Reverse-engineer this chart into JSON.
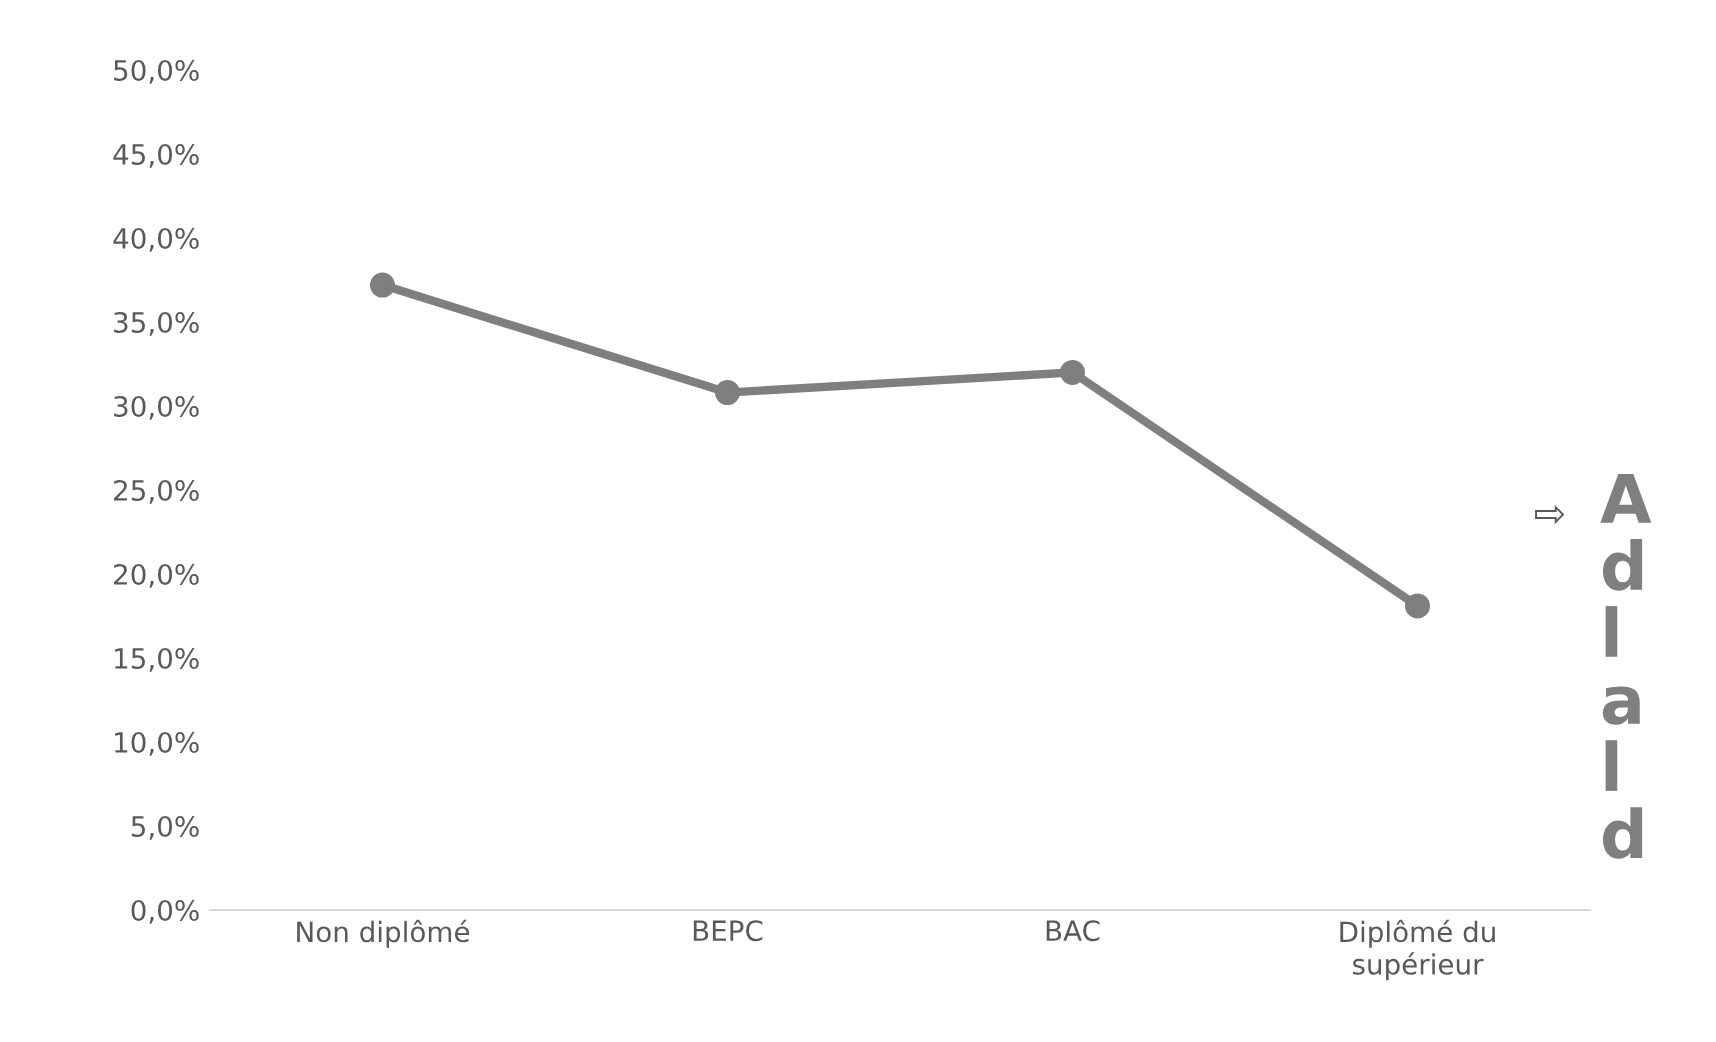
{
  "chart_data": {
    "type": "line",
    "categories": [
      "Non diplômé",
      "BEPC",
      "BAC",
      "Diplômé du\nsupérieur"
    ],
    "series": [
      {
        "color": "#7f7f7f",
        "values": [
          37.2,
          30.8,
          32.0,
          18.1
        ]
      }
    ],
    "ylim": [
      0,
      50
    ],
    "yticks": [
      {
        "value": 0,
        "label": "0,0%"
      },
      {
        "value": 5,
        "label": "5,0%"
      },
      {
        "value": 10,
        "label": "10,0%"
      },
      {
        "value": 15,
        "label": "15,0%"
      },
      {
        "value": 20,
        "label": "20,0%"
      },
      {
        "value": 25,
        "label": "25,0%"
      },
      {
        "value": 30,
        "label": "30,0%"
      },
      {
        "value": 35,
        "label": "35,0%"
      },
      {
        "value": 40,
        "label": "40,0%"
      },
      {
        "value": 45,
        "label": "45,0%"
      },
      {
        "value": 50,
        "label": "50,0%"
      }
    ],
    "grid": false,
    "legend": false,
    "marker": "circle",
    "line_style": "solid",
    "annotations": [
      "⇨",
      "A\nd\nl\na\nl\nd"
    ]
  }
}
